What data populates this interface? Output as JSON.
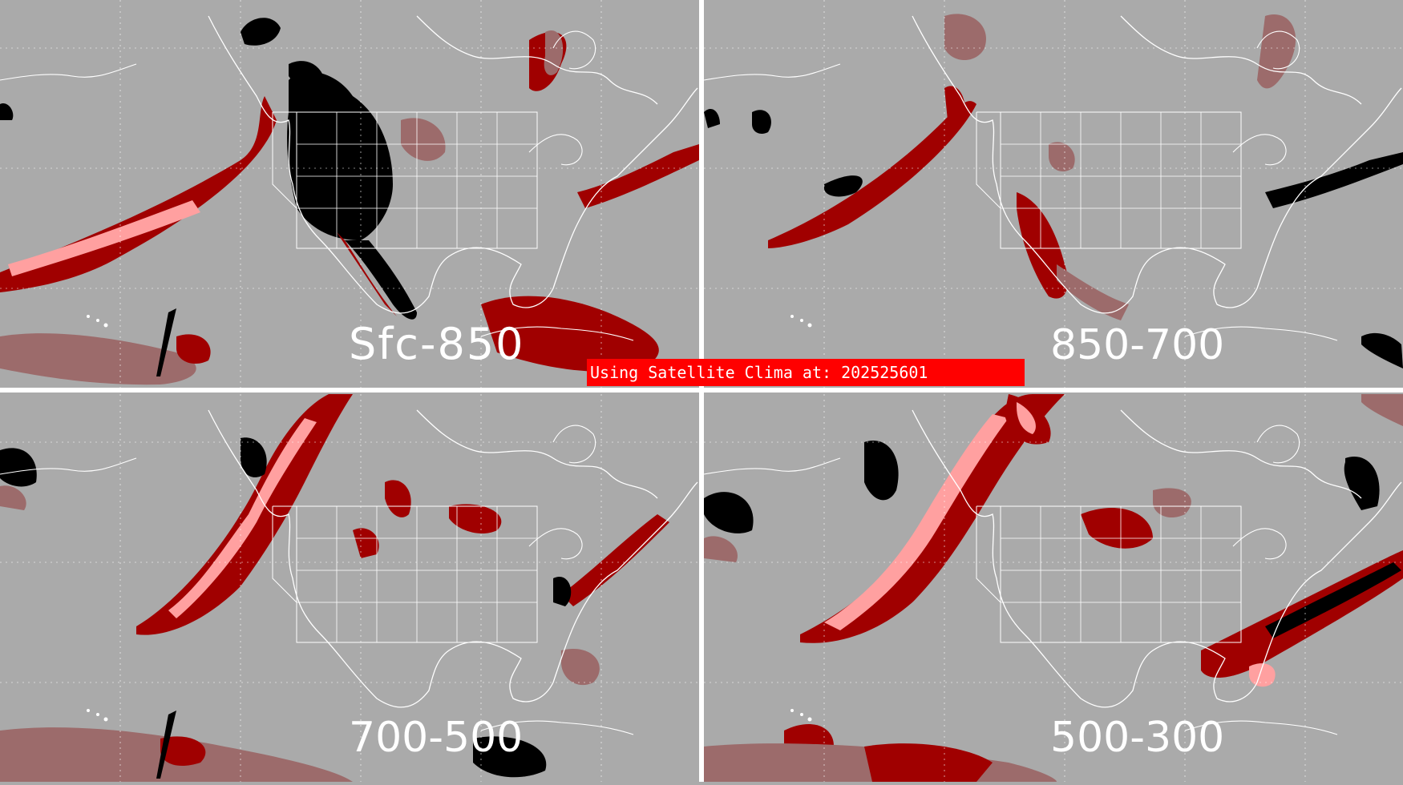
{
  "colors": {
    "background": "#aaaaaa",
    "light_red": "#9c6b6b",
    "dark_red": "#a00000",
    "pink": "#ffa0a0",
    "black": "#000000",
    "white": "#ffffff",
    "banner": "#ff0000"
  },
  "panels": [
    {
      "id": "sfc-850",
      "label": "Sfc-850"
    },
    {
      "id": "850-700",
      "label": "850-700"
    },
    {
      "id": "700-500",
      "label": "700-500"
    },
    {
      "id": "500-300",
      "label": "500-300"
    }
  ],
  "banner": {
    "text": "Using Satellite Clima at: 202525601"
  }
}
